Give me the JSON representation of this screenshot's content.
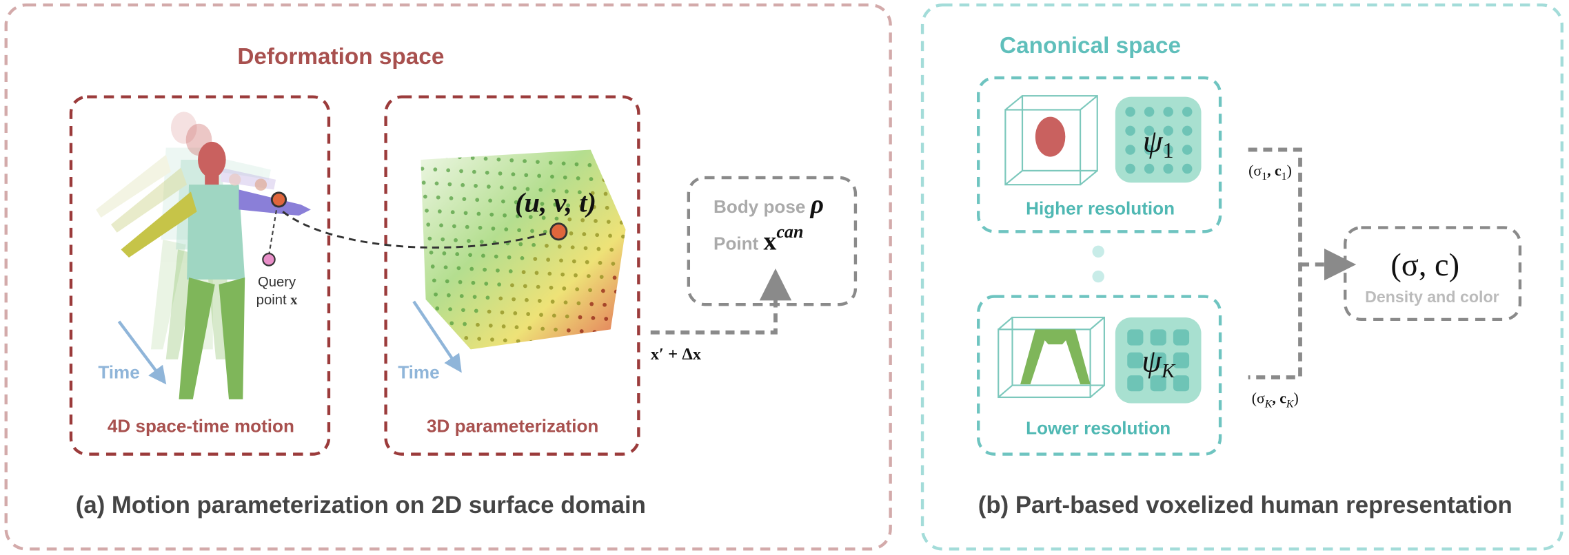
{
  "panel_a": {
    "title": "Deformation space",
    "motion_label": "4D space-time motion",
    "param_label": "3D parameterization",
    "time_label_1": "Time",
    "time_label_2": "Time",
    "query_line1": "Query",
    "query_line2": "point",
    "query_var": "x",
    "uvt": "(u, v, t)",
    "pose_text": "Body pose",
    "pose_symbol": "ρ",
    "point_text": "Point",
    "point_symbol": "x",
    "point_sup": "can",
    "offset": "x′ + Δx",
    "caption": "(a) Motion parameterization on 2D surface domain"
  },
  "panel_b": {
    "title": "Canonical space",
    "high_label": "Higher resolution",
    "low_label": "Lower resolution",
    "psi_high": {
      "symbol": "ψ",
      "sub": "1"
    },
    "psi_low": {
      "symbol": "ψ",
      "sub": "K"
    },
    "out_high": {
      "open": "(σ",
      "sub1": "1",
      "mid": ", c",
      "sub2": "1",
      "close": ")"
    },
    "out_low": {
      "open": "(σ",
      "sub1": "K",
      "mid": ", c",
      "sub2": "K",
      "close": ")"
    },
    "result": "(σ, c)",
    "result_label": "Density and color",
    "caption": "(b) Part-based voxelized human representation"
  }
}
